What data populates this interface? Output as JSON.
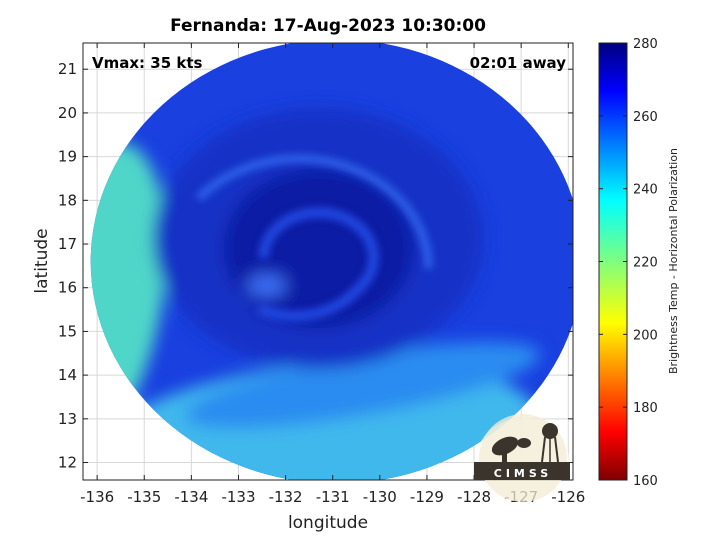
{
  "chart_data": {
    "type": "heatmap",
    "title": "Fernanda: 17-Aug-2023 10:30:00",
    "xlabel": "longitude",
    "ylabel": "latitude",
    "xlim": [
      -136.3,
      -125.9
    ],
    "ylim": [
      11.6,
      21.6
    ],
    "xticks": [
      -136,
      -135,
      -134,
      -133,
      -132,
      -131,
      -130,
      -129,
      -128,
      -127,
      -126
    ],
    "yticks": [
      12,
      13,
      14,
      15,
      16,
      17,
      18,
      19,
      20,
      21
    ],
    "grid": true,
    "annotations": {
      "vmax": "Vmax: 35 kts",
      "time_away": "02:01 away"
    },
    "colorbar": {
      "label": "Brightness Temp - Horizontal Polarization",
      "range": [
        160,
        280
      ],
      "ticks": [
        160,
        180,
        200,
        220,
        240,
        260,
        280
      ],
      "colormap": "jet"
    },
    "swath_center": {
      "lon": -131.0,
      "lat": 16.6
    },
    "storm_center": {
      "lon": -131.3,
      "lat": 16.9
    },
    "logo": "CIMSS"
  }
}
